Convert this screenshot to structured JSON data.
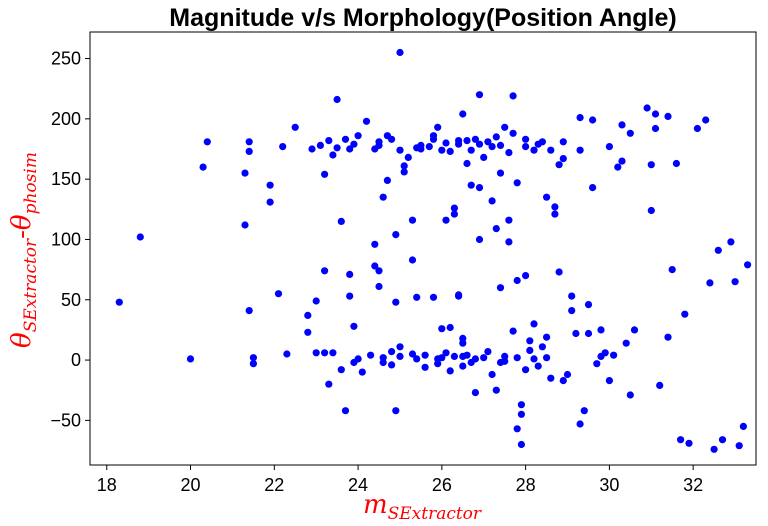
{
  "chart_data": {
    "type": "scatter",
    "title": "Magnitude v/s Morphology(Position Angle)",
    "xlabel": {
      "base": "m",
      "sub": "SExtractor"
    },
    "ylabel": {
      "base1": "θ",
      "sub1": "SExtractor",
      "sep": "-",
      "base2": "θ",
      "sub2": "phosim"
    },
    "xlim": [
      17.6,
      33.5
    ],
    "ylim": [
      -87,
      272
    ],
    "xticks": [
      "18",
      "20",
      "22",
      "24",
      "26",
      "28",
      "30",
      "32"
    ],
    "yticks": [
      "−50",
      "0",
      "50",
      "100",
      "150",
      "200",
      "250"
    ],
    "grid": false,
    "colors": {
      "points": "#0000ff",
      "labels": "#ff0000",
      "axis": "#000000"
    },
    "points": [
      [
        18.3,
        48
      ],
      [
        18.8,
        102
      ],
      [
        20.0,
        1
      ],
      [
        20.3,
        160
      ],
      [
        20.4,
        181
      ],
      [
        21.3,
        155
      ],
      [
        21.3,
        112
      ],
      [
        21.4,
        181
      ],
      [
        21.4,
        173
      ],
      [
        21.4,
        41
      ],
      [
        21.5,
        2
      ],
      [
        21.5,
        -3
      ],
      [
        21.9,
        145
      ],
      [
        21.9,
        131
      ],
      [
        22.1,
        55
      ],
      [
        22.2,
        177
      ],
      [
        22.3,
        5
      ],
      [
        22.5,
        193
      ],
      [
        22.8,
        37
      ],
      [
        22.8,
        23
      ],
      [
        22.9,
        175
      ],
      [
        23.0,
        6
      ],
      [
        23.0,
        49
      ],
      [
        23.1,
        178
      ],
      [
        23.2,
        74
      ],
      [
        23.2,
        154
      ],
      [
        23.2,
        6
      ],
      [
        23.3,
        -20
      ],
      [
        23.3,
        182
      ],
      [
        23.4,
        170
      ],
      [
        23.4,
        6
      ],
      [
        23.5,
        176
      ],
      [
        23.5,
        216
      ],
      [
        23.6,
        -8
      ],
      [
        23.6,
        115
      ],
      [
        23.7,
        -42
      ],
      [
        23.7,
        183
      ],
      [
        23.8,
        71
      ],
      [
        23.8,
        53
      ],
      [
        23.8,
        175
      ],
      [
        23.9,
        179
      ],
      [
        23.9,
        28
      ],
      [
        23.9,
        -2
      ],
      [
        24.0,
        186
      ],
      [
        24.0,
        1
      ],
      [
        24.1,
        -10
      ],
      [
        24.2,
        198
      ],
      [
        24.3,
        4
      ],
      [
        24.4,
        175
      ],
      [
        24.4,
        96
      ],
      [
        24.4,
        78
      ],
      [
        24.5,
        178
      ],
      [
        24.5,
        181
      ],
      [
        24.5,
        74
      ],
      [
        24.5,
        61
      ],
      [
        24.6,
        135
      ],
      [
        24.6,
        2
      ],
      [
        24.6,
        -2
      ],
      [
        24.7,
        149
      ],
      [
        24.7,
        186
      ],
      [
        24.8,
        183
      ],
      [
        24.8,
        7
      ],
      [
        24.8,
        -4
      ],
      [
        24.9,
        104
      ],
      [
        24.9,
        48
      ],
      [
        24.9,
        -42
      ],
      [
        25.0,
        255
      ],
      [
        25.0,
        174
      ],
      [
        25.0,
        3
      ],
      [
        25.0,
        11
      ],
      [
        25.1,
        161
      ],
      [
        25.1,
        156
      ],
      [
        25.2,
        168
      ],
      [
        25.3,
        83
      ],
      [
        25.3,
        116
      ],
      [
        25.3,
        5
      ],
      [
        25.4,
        1
      ],
      [
        25.4,
        176
      ],
      [
        25.4,
        52
      ],
      [
        25.5,
        175
      ],
      [
        25.5,
        178
      ],
      [
        25.6,
        4
      ],
      [
        25.6,
        -6
      ],
      [
        25.7,
        177
      ],
      [
        25.8,
        52
      ],
      [
        25.8,
        183
      ],
      [
        25.8,
        186
      ],
      [
        25.9,
        1
      ],
      [
        25.9,
        -3
      ],
      [
        25.9,
        193
      ],
      [
        26.0,
        174
      ],
      [
        26.0,
        26
      ],
      [
        26.0,
        2
      ],
      [
        26.1,
        116
      ],
      [
        26.1,
        180
      ],
      [
        26.1,
        6
      ],
      [
        26.2,
        27
      ],
      [
        26.2,
        173
      ],
      [
        26.2,
        -9
      ],
      [
        26.3,
        126
      ],
      [
        26.3,
        121
      ],
      [
        26.3,
        3
      ],
      [
        26.4,
        179
      ],
      [
        26.4,
        182
      ],
      [
        26.4,
        53
      ],
      [
        26.4,
        54
      ],
      [
        26.5,
        204
      ],
      [
        26.5,
        14
      ],
      [
        26.5,
        18
      ],
      [
        26.5,
        3
      ],
      [
        26.5,
        -5
      ],
      [
        26.6,
        163
      ],
      [
        26.6,
        182
      ],
      [
        26.6,
        4
      ],
      [
        26.7,
        174
      ],
      [
        26.7,
        145
      ],
      [
        26.7,
        -2
      ],
      [
        26.8,
        1
      ],
      [
        26.8,
        183
      ],
      [
        26.8,
        -27
      ],
      [
        26.9,
        220
      ],
      [
        26.9,
        100
      ],
      [
        26.9,
        179
      ],
      [
        26.9,
        143
      ],
      [
        27.0,
        168
      ],
      [
        27.0,
        2
      ],
      [
        27.1,
        181
      ],
      [
        27.1,
        7
      ],
      [
        27.2,
        177
      ],
      [
        27.2,
        132
      ],
      [
        27.2,
        -12
      ],
      [
        27.3,
        185
      ],
      [
        27.3,
        -25
      ],
      [
        27.3,
        109
      ],
      [
        27.4,
        178
      ],
      [
        27.4,
        155
      ],
      [
        27.4,
        60
      ],
      [
        27.4,
        -2
      ],
      [
        27.5,
        193
      ],
      [
        27.5,
        3
      ],
      [
        27.5,
        -1
      ],
      [
        27.6,
        98
      ],
      [
        27.6,
        116
      ],
      [
        27.6,
        172
      ],
      [
        27.7,
        219
      ],
      [
        27.7,
        188
      ],
      [
        27.7,
        24
      ],
      [
        27.8,
        147
      ],
      [
        27.8,
        66
      ],
      [
        27.8,
        -57
      ],
      [
        27.8,
        2
      ],
      [
        27.9,
        -70
      ],
      [
        27.9,
        -37
      ],
      [
        27.9,
        -45
      ],
      [
        28.0,
        183
      ],
      [
        28.0,
        177
      ],
      [
        28.0,
        70
      ],
      [
        28.0,
        -8
      ],
      [
        28.1,
        8
      ],
      [
        28.1,
        16
      ],
      [
        28.2,
        174
      ],
      [
        28.2,
        1
      ],
      [
        28.2,
        30
      ],
      [
        28.3,
        179
      ],
      [
        28.3,
        -5
      ],
      [
        28.4,
        11
      ],
      [
        28.4,
        181
      ],
      [
        28.5,
        135
      ],
      [
        28.5,
        19
      ],
      [
        28.5,
        2
      ],
      [
        28.6,
        174
      ],
      [
        28.6,
        -15
      ],
      [
        28.7,
        127
      ],
      [
        28.7,
        121
      ],
      [
        28.8,
        162
      ],
      [
        28.8,
        73
      ],
      [
        28.9,
        167
      ],
      [
        28.9,
        181
      ],
      [
        28.9,
        -17
      ],
      [
        29.0,
        -12
      ],
      [
        29.1,
        53
      ],
      [
        29.1,
        41
      ],
      [
        29.2,
        22
      ],
      [
        29.3,
        201
      ],
      [
        29.3,
        174
      ],
      [
        29.3,
        -53
      ],
      [
        29.4,
        -42
      ],
      [
        29.5,
        46
      ],
      [
        29.5,
        22
      ],
      [
        29.6,
        143
      ],
      [
        29.6,
        199
      ],
      [
        29.7,
        -3
      ],
      [
        29.8,
        25
      ],
      [
        29.8,
        3
      ],
      [
        29.9,
        6
      ],
      [
        30.0,
        -17
      ],
      [
        30.0,
        177
      ],
      [
        30.1,
        4
      ],
      [
        30.2,
        160
      ],
      [
        30.3,
        195
      ],
      [
        30.3,
        165
      ],
      [
        30.4,
        14
      ],
      [
        30.5,
        188
      ],
      [
        30.5,
        -29
      ],
      [
        30.6,
        25
      ],
      [
        30.9,
        209
      ],
      [
        31.0,
        162
      ],
      [
        31.0,
        124
      ],
      [
        31.1,
        204
      ],
      [
        31.1,
        192
      ],
      [
        31.2,
        -21
      ],
      [
        31.4,
        19
      ],
      [
        31.4,
        202
      ],
      [
        31.5,
        75
      ],
      [
        31.6,
        163
      ],
      [
        31.7,
        -66
      ],
      [
        31.8,
        38
      ],
      [
        31.9,
        -69
      ],
      [
        32.1,
        192
      ],
      [
        32.3,
        199
      ],
      [
        32.4,
        64
      ],
      [
        32.5,
        -74
      ],
      [
        32.6,
        91
      ],
      [
        32.7,
        -66
      ],
      [
        32.9,
        98
      ],
      [
        33.0,
        65
      ],
      [
        33.1,
        -71
      ],
      [
        33.2,
        -55
      ],
      [
        33.3,
        79
      ]
    ]
  }
}
